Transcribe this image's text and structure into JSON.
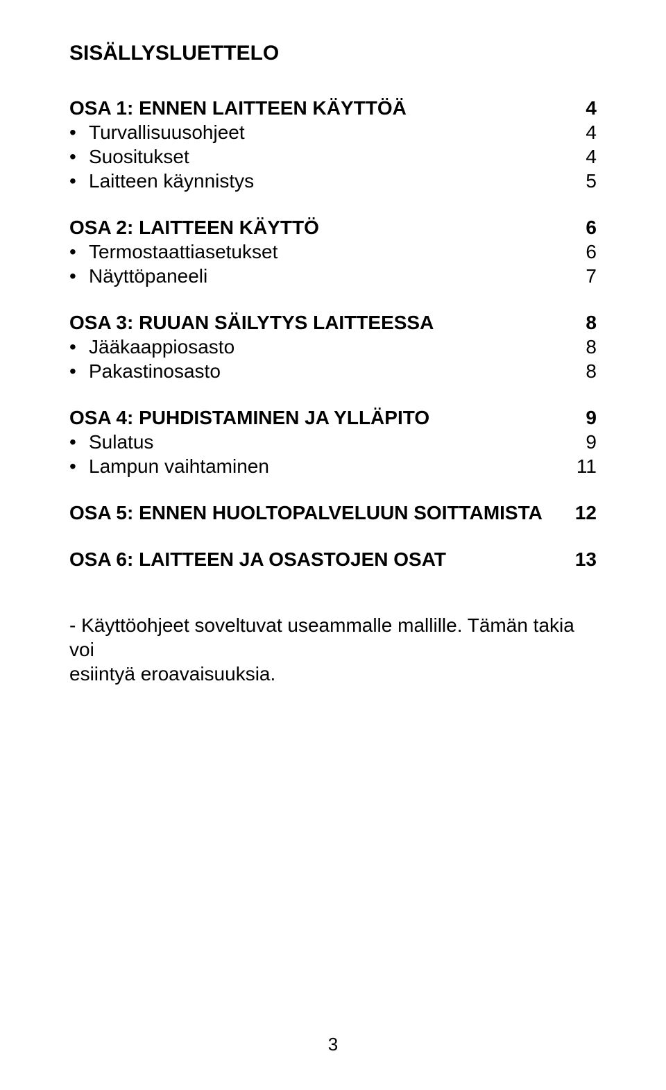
{
  "title": "SISÄLLYSLUETTELO",
  "sections": [
    {
      "heading": {
        "label": "OSA 1: ENNEN LAITTEEN KÄYTTÖÄ",
        "page": "4"
      },
      "items": [
        {
          "label": "Turvallisuusohjeet",
          "page": "4"
        },
        {
          "label": "Suositukset",
          "page": "4"
        },
        {
          "label": "Laitteen käynnistys",
          "page": "5"
        }
      ]
    },
    {
      "heading": {
        "label": "OSA 2: LAITTEEN KÄYTTÖ",
        "page": "6"
      },
      "items": [
        {
          "label": "Termostaattiasetukset",
          "page": "6"
        },
        {
          "label": "Näyttöpaneeli",
          "page": "7"
        }
      ]
    },
    {
      "heading": {
        "label": "OSA 3: RUUAN SÄILYTYS LAITTEESSA",
        "page": "8"
      },
      "items": [
        {
          "label": "Jääkaappiosasto",
          "page": "8"
        },
        {
          "label": "Pakastinosasto",
          "page": "8"
        }
      ]
    },
    {
      "heading": {
        "label": "OSA 4: PUHDISTAMINEN JA YLLÄPITO",
        "page": "9"
      },
      "items": [
        {
          "label": "Sulatus",
          "page": "9"
        },
        {
          "label": "Lampun vaihtaminen",
          "page": "11"
        }
      ]
    },
    {
      "heading": {
        "label": "OSA 5: ENNEN HUOLTOPALVELUUN SOITTAMISTA",
        "page": "12"
      },
      "items": []
    },
    {
      "heading": {
        "label": "OSA 6: LAITTEEN JA OSASTOJEN OSAT",
        "page": "13"
      },
      "items": []
    }
  ],
  "note_line1": "- Käyttöohjeet soveltuvat useammalle mallille. Tämän takia voi",
  "note_line2": "esiintyä eroavaisuuksia.",
  "page_number": "3",
  "bullet": "•"
}
